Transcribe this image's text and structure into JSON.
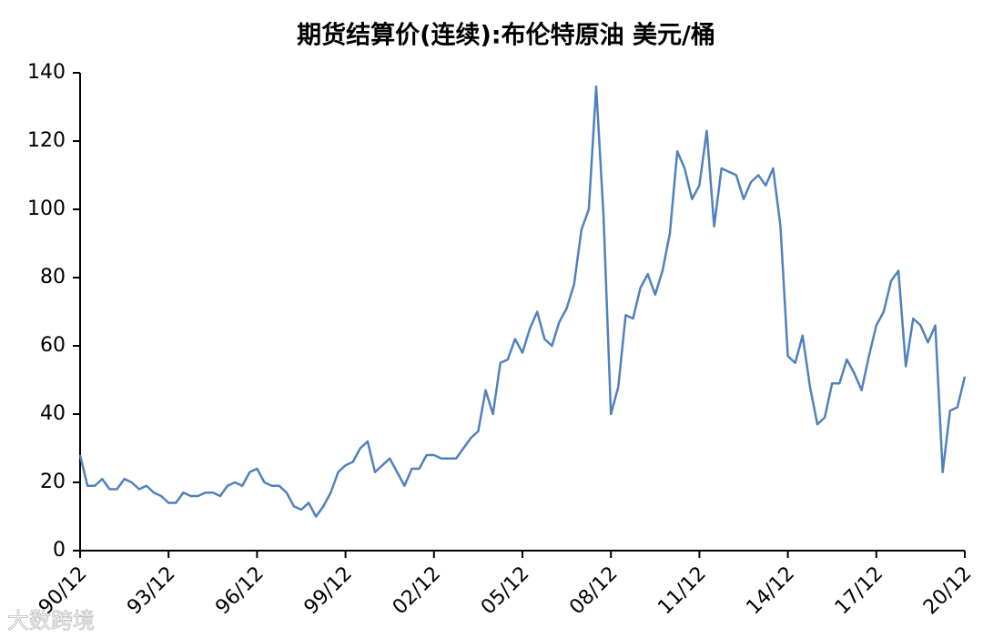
{
  "chart_data": {
    "type": "line",
    "title": "期货结算价(连续):布伦特原油 美元/桶",
    "watermark": "大数跨境",
    "x": [
      "90/12",
      "91/03",
      "91/06",
      "91/09",
      "91/12",
      "92/03",
      "92/06",
      "92/09",
      "92/12",
      "93/03",
      "93/06",
      "93/09",
      "93/12",
      "94/03",
      "94/06",
      "94/09",
      "94/12",
      "95/03",
      "95/06",
      "95/09",
      "95/12",
      "96/03",
      "96/06",
      "96/09",
      "96/12",
      "97/03",
      "97/06",
      "97/09",
      "97/12",
      "98/03",
      "98/06",
      "98/09",
      "98/12",
      "99/03",
      "99/06",
      "99/09",
      "99/12",
      "00/03",
      "00/06",
      "00/09",
      "00/12",
      "01/03",
      "01/06",
      "01/09",
      "01/12",
      "02/03",
      "02/06",
      "02/09",
      "02/12",
      "03/03",
      "03/06",
      "03/09",
      "03/12",
      "04/03",
      "04/06",
      "04/09",
      "04/12",
      "05/03",
      "05/06",
      "05/09",
      "05/12",
      "06/03",
      "06/06",
      "06/09",
      "06/12",
      "07/03",
      "07/06",
      "07/09",
      "07/12",
      "08/03",
      "08/06",
      "08/09",
      "08/12",
      "09/03",
      "09/06",
      "09/09",
      "09/12",
      "10/03",
      "10/06",
      "10/09",
      "10/12",
      "11/03",
      "11/06",
      "11/09",
      "11/12",
      "12/03",
      "12/06",
      "12/09",
      "12/12",
      "13/03",
      "13/06",
      "13/09",
      "13/12",
      "14/03",
      "14/06",
      "14/09",
      "14/12",
      "15/03",
      "15/06",
      "15/09",
      "15/12",
      "16/03",
      "16/06",
      "16/09",
      "16/12",
      "17/03",
      "17/06",
      "17/09",
      "17/12",
      "18/03",
      "18/06",
      "18/09",
      "18/12",
      "19/03",
      "19/06",
      "19/09",
      "19/12",
      "20/03",
      "20/06",
      "20/09",
      "20/12"
    ],
    "series": [
      {
        "name": "布伦特原油",
        "color": "#4f81bd",
        "values": [
          28,
          19,
          19,
          21,
          18,
          18,
          21,
          20,
          18,
          19,
          17,
          16,
          14,
          14,
          17,
          16,
          16,
          17,
          17,
          16,
          19,
          20,
          19,
          23,
          24,
          20,
          19,
          19,
          17,
          13,
          12,
          14,
          10,
          13,
          17,
          23,
          25,
          26,
          30,
          32,
          23,
          25,
          27,
          23,
          19,
          24,
          24,
          28,
          28,
          27,
          27,
          27,
          30,
          33,
          35,
          47,
          40,
          55,
          56,
          62,
          58,
          65,
          70,
          62,
          60,
          67,
          71,
          78,
          94,
          100,
          136,
          98,
          40,
          48,
          69,
          68,
          77,
          81,
          75,
          82,
          93,
          117,
          112,
          103,
          107,
          123,
          95,
          112,
          111,
          110,
          103,
          108,
          110,
          107,
          112,
          95,
          57,
          55,
          63,
          48,
          37,
          39,
          49,
          49,
          56,
          52,
          47,
          57,
          66,
          70,
          79,
          82,
          54,
          68,
          66,
          61,
          66,
          23,
          41,
          42,
          51
        ]
      }
    ],
    "xlim": [
      "90/12",
      "20/12"
    ],
    "xticks": [
      "90/12",
      "93/12",
      "96/12",
      "99/12",
      "02/12",
      "05/12",
      "08/12",
      "11/12",
      "14/12",
      "17/12",
      "20/12"
    ],
    "ylim": [
      0,
      140
    ],
    "yticks": [
      0,
      20,
      40,
      60,
      80,
      100,
      120,
      140
    ]
  }
}
